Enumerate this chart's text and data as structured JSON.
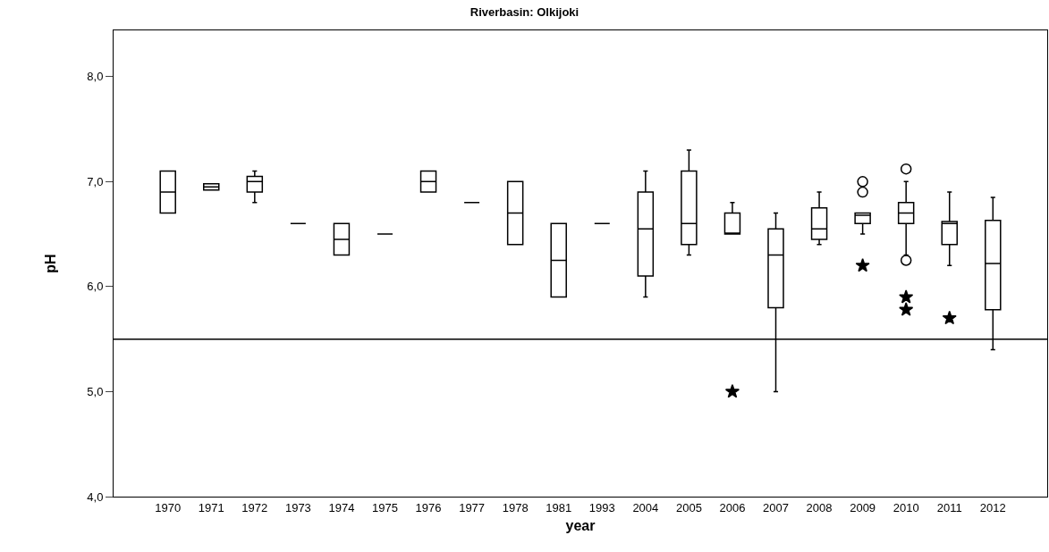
{
  "chart_data": {
    "type": "box",
    "title": "Riverbasin: Olkijoki",
    "xlabel": "year",
    "ylabel": "pH",
    "categories": [
      "1970",
      "1971",
      "1972",
      "1973",
      "1974",
      "1975",
      "1976",
      "1977",
      "1978",
      "1981",
      "1993",
      "2004",
      "2005",
      "2006",
      "2007",
      "2008",
      "2009",
      "2010",
      "2011",
      "2012"
    ],
    "boxes": [
      {
        "low": 6.7,
        "q1": 6.7,
        "median": 6.9,
        "q3": 7.1,
        "high": 7.1
      },
      {
        "low": 6.92,
        "q1": 6.92,
        "median": 6.95,
        "q3": 6.98,
        "high": 6.98
      },
      {
        "low": 6.8,
        "q1": 6.9,
        "median": 7.0,
        "q3": 7.05,
        "high": 7.1
      },
      {
        "low": 6.6,
        "q1": 6.6,
        "median": 6.6,
        "q3": 6.6,
        "high": 6.6
      },
      {
        "low": 6.3,
        "q1": 6.3,
        "median": 6.45,
        "q3": 6.6,
        "high": 6.6
      },
      {
        "low": 6.5,
        "q1": 6.5,
        "median": 6.5,
        "q3": 6.5,
        "high": 6.5
      },
      {
        "low": 6.9,
        "q1": 6.9,
        "median": 7.0,
        "q3": 7.1,
        "high": 7.1
      },
      {
        "low": 6.8,
        "q1": 6.8,
        "median": 6.8,
        "q3": 6.8,
        "high": 6.8
      },
      {
        "low": 6.4,
        "q1": 6.4,
        "median": 6.7,
        "q3": 7.0,
        "high": 7.0
      },
      {
        "low": 5.9,
        "q1": 5.9,
        "median": 6.25,
        "q3": 6.6,
        "high": 6.6
      },
      {
        "low": 6.6,
        "q1": 6.6,
        "median": 6.6,
        "q3": 6.6,
        "high": 6.6
      },
      {
        "low": 5.9,
        "q1": 6.1,
        "median": 6.55,
        "q3": 6.9,
        "high": 7.1
      },
      {
        "low": 6.3,
        "q1": 6.4,
        "median": 6.6,
        "q3": 7.1,
        "high": 7.3
      },
      {
        "low": 6.5,
        "q1": 6.5,
        "median": 6.5,
        "q3": 6.7,
        "high": 6.8,
        "outliers": [
          5.0
        ]
      },
      {
        "low": 5.0,
        "q1": 5.8,
        "median": 6.3,
        "q3": 6.55,
        "high": 6.7
      },
      {
        "low": 6.4,
        "q1": 6.45,
        "median": 6.55,
        "q3": 6.75,
        "high": 6.9
      },
      {
        "low": 6.5,
        "q1": 6.6,
        "median": 6.68,
        "q3": 6.7,
        "high": 6.7,
        "outliers": [
          7.0,
          6.9,
          6.2
        ]
      },
      {
        "low": 6.3,
        "q1": 6.6,
        "median": 6.7,
        "q3": 6.8,
        "high": 7.0,
        "outliers": [
          7.12,
          6.25,
          5.9,
          5.78
        ]
      },
      {
        "low": 6.2,
        "q1": 6.4,
        "median": 6.6,
        "q3": 6.62,
        "high": 6.9,
        "outliers": [
          5.7
        ]
      },
      {
        "low": 5.4,
        "q1": 5.78,
        "median": 6.22,
        "q3": 6.63,
        "high": 6.85
      }
    ],
    "ylim": [
      4.0,
      8.44
    ],
    "yticks": [
      {
        "value": 4.0,
        "label": "4,0"
      },
      {
        "value": 5.0,
        "label": "5,0"
      },
      {
        "value": 6.0,
        "label": "6,0"
      },
      {
        "value": 7.0,
        "label": "7,0"
      },
      {
        "value": 8.0,
        "label": "8,0"
      }
    ],
    "ref_lines": [
      {
        "axis": "y",
        "value": 5.5,
        "color": "#000000"
      }
    ],
    "color": "#000000"
  }
}
